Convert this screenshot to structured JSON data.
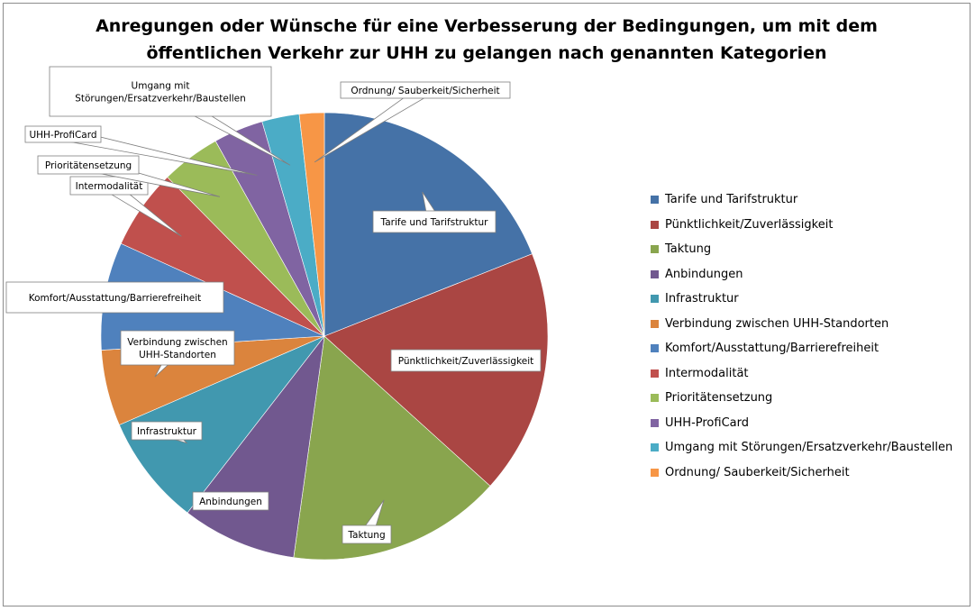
{
  "chart_data": {
    "type": "pie",
    "title_lines": [
      "Anregungen oder Wünsche für eine Verbesserung der Bedingungen, um mit dem",
      "öffentlichen Verkehr zur UHH zu gelangen nach genannten Kategorien"
    ],
    "legend_position": "right",
    "slices": [
      {
        "label": "Tarife und Tarifstruktur",
        "value": 19.0,
        "color": "#4572A7",
        "callout": [
          "Tarife und Tarifstruktur"
        ]
      },
      {
        "label": "Pünktlichkeit/Zuverlässigkeit",
        "value": 17.7,
        "color": "#AA4643",
        "callout": [
          "Pünktlichkeit/Zuverlässigkeit"
        ]
      },
      {
        "label": "Taktung",
        "value": 15.5,
        "color": "#89A54E",
        "callout": [
          "Taktung"
        ]
      },
      {
        "label": "Anbindungen",
        "value": 8.3,
        "color": "#71588F",
        "callout": [
          "Anbindungen"
        ]
      },
      {
        "label": "Infrastruktur",
        "value": 8.0,
        "color": "#4198AF",
        "callout": [
          "Infrastruktur"
        ]
      },
      {
        "label": "Verbindung zwischen UHH-Standorten",
        "value": 5.5,
        "color": "#DB843D",
        "callout": [
          "Verbindung zwischen",
          "UHH-Standorten"
        ]
      },
      {
        "label": "Komfort/Ausstattung/Barrierefreiheit",
        "value": 7.8,
        "color": "#4F81BD",
        "callout": [
          "Komfort/Ausstattung/Barrierefreiheit"
        ]
      },
      {
        "label": "Intermodalität",
        "value": 5.8,
        "color": "#C0504D",
        "callout": [
          "Intermodalität"
        ]
      },
      {
        "label": "Prioritätensetzung",
        "value": 4.3,
        "color": "#9BBB59",
        "callout": [
          "Prioritätensetzung"
        ]
      },
      {
        "label": "UHH-ProfiCard",
        "value": 3.6,
        "color": "#8064A2",
        "callout": [
          "UHH-ProfiCard"
        ]
      },
      {
        "label": "Umgang mit Störungen/Ersatzverkehr/Baustellen",
        "value": 2.7,
        "color": "#4BACC6",
        "callout": [
          "Umgang mit",
          "Störungen/Ersatzverkehr/Baustellen"
        ]
      },
      {
        "label": "Ordnung/ Sauberkeit/Sicherheit",
        "value": 1.8,
        "color": "#F79646",
        "callout": [
          "Ordnung/ Sauberkeit/Sicherheit"
        ]
      }
    ]
  }
}
